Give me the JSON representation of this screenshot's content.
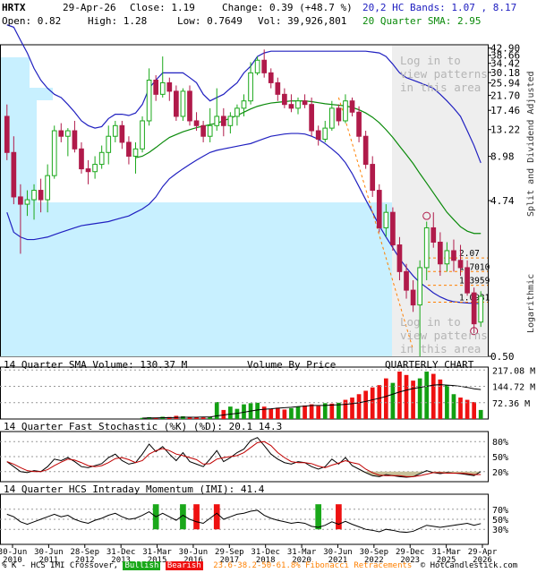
{
  "header": {
    "ticker": "HRTX",
    "date": "29-Apr-26",
    "close": "Close: 1.19",
    "change": "Change: 0.39 (+48.7 %)",
    "bands": "20,2 HC Bands: 1.07 , 8.17",
    "open": "Open: 0.82",
    "high": "High: 1.28",
    "low": "Low: 0.7649",
    "vol": "Vol: 39,926,801",
    "sma": "20 Quarter SMA: 2.95"
  },
  "colors": {
    "up": "#1aa81a",
    "down": "#b01a4a",
    "bands": "#2020c0",
    "sma": "#0a8a0a",
    "vbp": "#c8f0ff",
    "fib": "#ff8000",
    "vol_up": "#12a012",
    "vol_down": "#ee1111"
  },
  "right_labels": {
    "price_axis_title": "Split and Dividend Adjusted",
    "log_title": "Logarithmic"
  },
  "watermark": {
    "top": "Log in to\nview patterns\nin this area",
    "bottom": "Log in to\nview patterns\nin this area"
  },
  "panels": {
    "volume_title": "14 Quarter SMA Volume: 130.37 M",
    "vbp_title": "Volume By Price",
    "chart_title": "QUARTERLY CHART",
    "stoch_title": "14 Quarter Fast Stochastic (%K) (%D): 20.1  14.3",
    "imi_title": "14 Quarter HCS Intraday Momentum (IMI): 41.4"
  },
  "footer": {
    "prefix": "% K - HCS IMI Crossover,",
    "bullish": "Bullish",
    "bearish": "Bearish",
    "fib": "23.6-38.2-50-61.8% Fibonacci Retracements",
    "copyright": "© HotCandlestick.com"
  },
  "chart_data": {
    "type": "candlestick",
    "period": "quarterly",
    "y_scale": "log",
    "price_ticks": [
      42.9,
      38.66,
      34.42,
      30.18,
      25.94,
      21.7,
      17.46,
      13.22,
      8.98,
      4.74,
      0.5
    ],
    "fib_levels": [
      {
        "label": "2.07",
        "value": 2.07
      },
      {
        "label": "1.7010",
        "value": 1.701
      },
      {
        "label": "1.3959",
        "value": 1.3959
      },
      {
        "label": "1.0931",
        "value": 1.0931
      }
    ],
    "volume_ticks": [
      "217.08 M",
      "144.72 M",
      "72.36 M"
    ],
    "stoch_ticks": [
      "80%",
      "50%",
      "20%"
    ],
    "imi_ticks": [
      "70%",
      "50%",
      "30%"
    ],
    "x_tick_labels": [
      {
        "top": "30-Jun",
        "bottom": "2010"
      },
      {
        "top": "30-Jun",
        "bottom": "2011"
      },
      {
        "top": "28-Sep",
        "bottom": "2012"
      },
      {
        "top": "31-Dec",
        "bottom": "2013"
      },
      {
        "top": "31-Mar",
        "bottom": "2015"
      },
      {
        "top": "30-Jun",
        "bottom": "2016"
      },
      {
        "top": "29-Sep",
        "bottom": "2017"
      },
      {
        "top": "31-Dec",
        "bottom": "2018"
      },
      {
        "top": "31-Mar",
        "bottom": "2020"
      },
      {
        "top": "30-Jun",
        "bottom": "2021"
      },
      {
        "top": "30-Sep",
        "bottom": "2022"
      },
      {
        "top": "29-Dec",
        "bottom": "2023"
      },
      {
        "top": "31-Mar",
        "bottom": "2025"
      },
      {
        "top": "29-Apr",
        "bottom": "2026"
      }
    ],
    "candles": [
      {
        "o": 16,
        "h": 19,
        "l": 8.5,
        "c": 9.5
      },
      {
        "o": 9.5,
        "h": 12,
        "l": 4.5,
        "c": 5.0
      },
      {
        "o": 5.0,
        "h": 6.0,
        "l": 2.2,
        "c": 4.5
      },
      {
        "o": 4.5,
        "h": 5.5,
        "l": 3.8,
        "c": 4.8
      },
      {
        "o": 4.8,
        "h": 6.0,
        "l": 3.6,
        "c": 5.5
      },
      {
        "o": 5.5,
        "h": 6.5,
        "l": 4.0,
        "c": 4.8
      },
      {
        "o": 4.8,
        "h": 8.0,
        "l": 4.0,
        "c": 6.8
      },
      {
        "o": 6.8,
        "h": 14,
        "l": 6.5,
        "c": 13.0
      },
      {
        "o": 13.0,
        "h": 14.5,
        "l": 11,
        "c": 12.0
      },
      {
        "o": 12.0,
        "h": 13.5,
        "l": 9.0,
        "c": 13.0
      },
      {
        "o": 13.0,
        "h": 15,
        "l": 9.5,
        "c": 10.0
      },
      {
        "o": 10.0,
        "h": 11,
        "l": 7.0,
        "c": 7.5
      },
      {
        "o": 7.5,
        "h": 8.5,
        "l": 6.0,
        "c": 7.2
      },
      {
        "o": 7.2,
        "h": 9.0,
        "l": 6.5,
        "c": 8.0
      },
      {
        "o": 8.0,
        "h": 10.5,
        "l": 7.5,
        "c": 9.5
      },
      {
        "o": 9.5,
        "h": 14,
        "l": 8.0,
        "c": 12.0
      },
      {
        "o": 12.0,
        "h": 15,
        "l": 11.0,
        "c": 14.0
      },
      {
        "o": 14.0,
        "h": 15,
        "l": 10.0,
        "c": 11.0
      },
      {
        "o": 11.0,
        "h": 12,
        "l": 8.0,
        "c": 9.0
      },
      {
        "o": 9.0,
        "h": 11,
        "l": 7.0,
        "c": 10.0
      },
      {
        "o": 10.0,
        "h": 16,
        "l": 9.5,
        "c": 15.0
      },
      {
        "o": 15.0,
        "h": 32,
        "l": 14.0,
        "c": 27.0
      },
      {
        "o": 27.0,
        "h": 29,
        "l": 20,
        "c": 22.0
      },
      {
        "o": 22.0,
        "h": 38,
        "l": 21,
        "c": 26.0
      },
      {
        "o": 26.0,
        "h": 28,
        "l": 20,
        "c": 23.0
      },
      {
        "o": 23.0,
        "h": 25,
        "l": 15,
        "c": 16.0
      },
      {
        "o": 16.0,
        "h": 24,
        "l": 15,
        "c": 23.0
      },
      {
        "o": 23.0,
        "h": 25,
        "l": 14,
        "c": 15.0
      },
      {
        "o": 15.0,
        "h": 17,
        "l": 13,
        "c": 14.0
      },
      {
        "o": 14.0,
        "h": 15,
        "l": 11,
        "c": 12.0
      },
      {
        "o": 12.0,
        "h": 18,
        "l": 11,
        "c": 14.0
      },
      {
        "o": 14.0,
        "h": 24,
        "l": 13,
        "c": 16.0
      },
      {
        "o": 16.0,
        "h": 18,
        "l": 12,
        "c": 14.0
      },
      {
        "o": 14.0,
        "h": 17,
        "l": 12.5,
        "c": 16.0
      },
      {
        "o": 16.0,
        "h": 19,
        "l": 14,
        "c": 18.0
      },
      {
        "o": 18.0,
        "h": 22,
        "l": 16,
        "c": 20.0
      },
      {
        "o": 20.0,
        "h": 35,
        "l": 19,
        "c": 30.0
      },
      {
        "o": 30.0,
        "h": 38,
        "l": 29,
        "c": 36.0
      },
      {
        "o": 36.0,
        "h": 42,
        "l": 28,
        "c": 30.0
      },
      {
        "o": 30.0,
        "h": 32,
        "l": 24,
        "c": 26.0
      },
      {
        "o": 26.0,
        "h": 28,
        "l": 20,
        "c": 22.0
      },
      {
        "o": 22.0,
        "h": 24,
        "l": 18,
        "c": 19.0
      },
      {
        "o": 19.0,
        "h": 22,
        "l": 17,
        "c": 18.0
      },
      {
        "o": 18.0,
        "h": 21,
        "l": 16.5,
        "c": 20.0
      },
      {
        "o": 20.0,
        "h": 22,
        "l": 18,
        "c": 19.0
      },
      {
        "o": 19.0,
        "h": 21,
        "l": 12,
        "c": 13.0
      },
      {
        "o": 13.0,
        "h": 14,
        "l": 10.5,
        "c": 11.5
      },
      {
        "o": 11.5,
        "h": 15,
        "l": 11,
        "c": 13.5
      },
      {
        "o": 13.5,
        "h": 20,
        "l": 13,
        "c": 18.0
      },
      {
        "o": 18.0,
        "h": 19,
        "l": 14,
        "c": 15.0
      },
      {
        "o": 15.0,
        "h": 22,
        "l": 14.5,
        "c": 20.0
      },
      {
        "o": 20.0,
        "h": 21,
        "l": 16,
        "c": 17.0
      },
      {
        "o": 17.0,
        "h": 18.5,
        "l": 11,
        "c": 12.0
      },
      {
        "o": 12.0,
        "h": 13,
        "l": 7.5,
        "c": 8.0
      },
      {
        "o": 8.0,
        "h": 9,
        "l": 5.0,
        "c": 5.5
      },
      {
        "o": 5.5,
        "h": 6,
        "l": 3.0,
        "c": 3.2
      },
      {
        "o": 3.2,
        "h": 4.5,
        "l": 2.8,
        "c": 4.0
      },
      {
        "o": 4.0,
        "h": 4.3,
        "l": 2.3,
        "c": 2.5
      },
      {
        "o": 2.5,
        "h": 2.8,
        "l": 1.5,
        "c": 1.7
      },
      {
        "o": 1.7,
        "h": 1.9,
        "l": 1.15,
        "c": 1.3
      },
      {
        "o": 1.3,
        "h": 1.5,
        "l": 0.95,
        "c": 1.05
      },
      {
        "o": 1.05,
        "h": 2.0,
        "l": 0.5,
        "c": 1.8
      },
      {
        "o": 1.8,
        "h": 3.5,
        "l": 1.5,
        "c": 3.2
      },
      {
        "o": 3.2,
        "h": 4.0,
        "l": 2.4,
        "c": 2.6
      },
      {
        "o": 2.6,
        "h": 3.0,
        "l": 1.6,
        "c": 1.9
      },
      {
        "o": 1.9,
        "h": 2.6,
        "l": 1.7,
        "c": 2.3
      },
      {
        "o": 2.3,
        "h": 2.7,
        "l": 1.7,
        "c": 2.0
      },
      {
        "o": 2.0,
        "h": 2.5,
        "l": 1.6,
        "c": 1.8
      },
      {
        "o": 1.8,
        "h": 2.0,
        "l": 1.2,
        "c": 1.25
      },
      {
        "o": 1.25,
        "h": 1.35,
        "l": 0.7,
        "c": 0.8
      },
      {
        "o": 0.82,
        "h": 1.28,
        "l": 0.7649,
        "c": 1.19
      }
    ],
    "upper_band": [
      60,
      58,
      48,
      40,
      32,
      27,
      24,
      22,
      21,
      19,
      17,
      15,
      14,
      13.5,
      13.8,
      15.5,
      16.5,
      16.5,
      16.2,
      16.8,
      19,
      24,
      27,
      30,
      30,
      30,
      30,
      28,
      26,
      22,
      20,
      21,
      22,
      24,
      26,
      30,
      33,
      38,
      40,
      41,
      41,
      41,
      41,
      41,
      41,
      41,
      41,
      41,
      41,
      41,
      41,
      41,
      41,
      41,
      40.5,
      40,
      38,
      34,
      30,
      28,
      27,
      26,
      25,
      24,
      22,
      20,
      18,
      16,
      13,
      10.5,
      8.17
    ],
    "lower_band": [
      4.0,
      3.0,
      2.8,
      2.7,
      2.7,
      2.75,
      2.8,
      2.9,
      3.0,
      3.1,
      3.2,
      3.3,
      3.35,
      3.4,
      3.45,
      3.5,
      3.6,
      3.7,
      3.8,
      4.0,
      4.2,
      4.5,
      5.0,
      5.8,
      6.5,
      7.0,
      7.5,
      8.0,
      8.5,
      9.0,
      9.5,
      9.8,
      10.0,
      10.2,
      10.4,
      10.6,
      10.8,
      11.2,
      11.6,
      12.0,
      12.2,
      12.4,
      12.5,
      12.5,
      12.4,
      12.0,
      11.5,
      10.8,
      10.0,
      9.2,
      8.2,
      7.0,
      5.8,
      4.8,
      4.0,
      3.3,
      2.8,
      2.4,
      2.05,
      1.8,
      1.6,
      1.45,
      1.35,
      1.25,
      1.18,
      1.13,
      1.1,
      1.09,
      1.08,
      1.075,
      1.07
    ],
    "sma_line": [
      null,
      null,
      null,
      null,
      null,
      null,
      null,
      null,
      null,
      null,
      null,
      null,
      null,
      null,
      null,
      null,
      null,
      null,
      null,
      8.8,
      9.0,
      9.5,
      10.2,
      11.0,
      11.8,
      12.3,
      12.8,
      13.2,
      13.6,
      13.9,
      14.2,
      14.5,
      15.0,
      15.6,
      16.2,
      17.0,
      17.8,
      18.5,
      19.0,
      19.4,
      19.6,
      19.8,
      20.0,
      20.0,
      20.0,
      19.8,
      19.5,
      19.2,
      19.0,
      18.8,
      18.6,
      18.2,
      17.6,
      16.8,
      15.8,
      14.6,
      13.2,
      11.8,
      10.4,
      9.2,
      8.1,
      7.0,
      6.1,
      5.3,
      4.6,
      4.0,
      3.6,
      3.25,
      3.05,
      2.95,
      2.95
    ],
    "volume": [
      {
        "v": 0,
        "up": false
      },
      {
        "v": 0,
        "up": false
      },
      {
        "v": 0,
        "up": false
      },
      {
        "v": 0,
        "up": false
      },
      {
        "v": 0,
        "up": false
      },
      {
        "v": 0,
        "up": false
      },
      {
        "v": 0,
        "up": false
      },
      {
        "v": 0,
        "up": false
      },
      {
        "v": 0,
        "up": false
      },
      {
        "v": 0,
        "up": false
      },
      {
        "v": 0,
        "up": false
      },
      {
        "v": 0,
        "up": false
      },
      {
        "v": 0,
        "up": false
      },
      {
        "v": 0,
        "up": false
      },
      {
        "v": 0,
        "up": false
      },
      {
        "v": 0,
        "up": false
      },
      {
        "v": 0,
        "up": false
      },
      {
        "v": 0,
        "up": false
      },
      {
        "v": 0,
        "up": false
      },
      {
        "v": 0,
        "up": false
      },
      {
        "v": 5,
        "up": true
      },
      {
        "v": 8,
        "up": true
      },
      {
        "v": 6,
        "up": false
      },
      {
        "v": 10,
        "up": true
      },
      {
        "v": 9,
        "up": false
      },
      {
        "v": 14,
        "up": false
      },
      {
        "v": 12,
        "up": true
      },
      {
        "v": 10,
        "up": false
      },
      {
        "v": 8,
        "up": false
      },
      {
        "v": 7,
        "up": false
      },
      {
        "v": 8,
        "up": true
      },
      {
        "v": 75,
        "up": true
      },
      {
        "v": 40,
        "up": false
      },
      {
        "v": 55,
        "up": true
      },
      {
        "v": 45,
        "up": true
      },
      {
        "v": 65,
        "up": true
      },
      {
        "v": 70,
        "up": true
      },
      {
        "v": 72,
        "up": true
      },
      {
        "v": 55,
        "up": false
      },
      {
        "v": 45,
        "up": false
      },
      {
        "v": 50,
        "up": false
      },
      {
        "v": 42,
        "up": false
      },
      {
        "v": 48,
        "up": true
      },
      {
        "v": 55,
        "up": true
      },
      {
        "v": 60,
        "up": false
      },
      {
        "v": 65,
        "up": false
      },
      {
        "v": 58,
        "up": false
      },
      {
        "v": 70,
        "up": true
      },
      {
        "v": 68,
        "up": false
      },
      {
        "v": 72,
        "up": true
      },
      {
        "v": 85,
        "up": false
      },
      {
        "v": 95,
        "up": false
      },
      {
        "v": 110,
        "up": false
      },
      {
        "v": 125,
        "up": false
      },
      {
        "v": 140,
        "up": false
      },
      {
        "v": 150,
        "up": false
      },
      {
        "v": 180,
        "up": false
      },
      {
        "v": 160,
        "up": true
      },
      {
        "v": 210,
        "up": false
      },
      {
        "v": 195,
        "up": false
      },
      {
        "v": 170,
        "up": false
      },
      {
        "v": 180,
        "up": true
      },
      {
        "v": 210,
        "up": true
      },
      {
        "v": 200,
        "up": false
      },
      {
        "v": 175,
        "up": false
      },
      {
        "v": 150,
        "up": true
      },
      {
        "v": 110,
        "up": true
      },
      {
        "v": 95,
        "up": false
      },
      {
        "v": 85,
        "up": false
      },
      {
        "v": 75,
        "up": false
      },
      {
        "v": 40,
        "up": true
      }
    ],
    "volume_sma": [
      null,
      null,
      null,
      null,
      null,
      null,
      null,
      null,
      null,
      null,
      null,
      null,
      null,
      null,
      null,
      null,
      null,
      null,
      null,
      null,
      4,
      5,
      5,
      6,
      6,
      7,
      8,
      8,
      8,
      9,
      9,
      14,
      18,
      22,
      25,
      30,
      35,
      40,
      43,
      45,
      48,
      50,
      52,
      55,
      57,
      60,
      60,
      60,
      62,
      63,
      65,
      68,
      72,
      78,
      85,
      92,
      100,
      110,
      120,
      128,
      135,
      140,
      145,
      150,
      152,
      150,
      148,
      145,
      140,
      134,
      130.37
    ],
    "stoch_k": [
      40,
      30,
      20,
      18,
      22,
      20,
      30,
      45,
      42,
      48,
      40,
      30,
      28,
      32,
      36,
      48,
      55,
      42,
      35,
      38,
      55,
      75,
      60,
      70,
      55,
      42,
      58,
      40,
      35,
      30,
      45,
      62,
      40,
      48,
      58,
      65,
      82,
      88,
      72,
      55,
      45,
      38,
      35,
      40,
      38,
      30,
      25,
      30,
      45,
      35,
      48,
      32,
      25,
      18,
      12,
      10,
      14,
      12,
      10,
      9,
      10,
      16,
      22,
      18,
      16,
      18,
      17,
      16,
      14,
      12,
      20.1
    ],
    "stoch_d": [
      40,
      35,
      28,
      22,
      20,
      20,
      24,
      32,
      39,
      45,
      43,
      38,
      32,
      30,
      32,
      38,
      46,
      48,
      44,
      38,
      42,
      55,
      62,
      66,
      62,
      55,
      52,
      48,
      44,
      35,
      36,
      45,
      48,
      50,
      52,
      58,
      68,
      78,
      80,
      72,
      58,
      48,
      40,
      38,
      38,
      36,
      31,
      28,
      33,
      37,
      42,
      38,
      35,
      25,
      18,
      13,
      12,
      12,
      12,
      10,
      10,
      12,
      15,
      18,
      18,
      17,
      17,
      17,
      16,
      14,
      14.3
    ],
    "imi": [
      60,
      55,
      45,
      40,
      45,
      50,
      55,
      60,
      55,
      58,
      50,
      45,
      42,
      48,
      52,
      58,
      62,
      55,
      50,
      52,
      58,
      65,
      55,
      62,
      55,
      48,
      58,
      50,
      45,
      42,
      52,
      62,
      50,
      55,
      60,
      62,
      66,
      68,
      58,
      52,
      48,
      45,
      42,
      44,
      42,
      36,
      34,
      38,
      45,
      40,
      46,
      40,
      35,
      30,
      28,
      25,
      30,
      28,
      25,
      24,
      26,
      32,
      38,
      36,
      34,
      36,
      38,
      40,
      42,
      38,
      41.4
    ],
    "crossovers": [
      {
        "i": 22,
        "type": "bullish"
      },
      {
        "i": 26,
        "type": "bullish"
      },
      {
        "i": 28,
        "type": "bearish"
      },
      {
        "i": 31,
        "type": "bearish"
      },
      {
        "i": 46,
        "type": "bullish"
      },
      {
        "i": 49,
        "type": "bearish"
      }
    ]
  }
}
